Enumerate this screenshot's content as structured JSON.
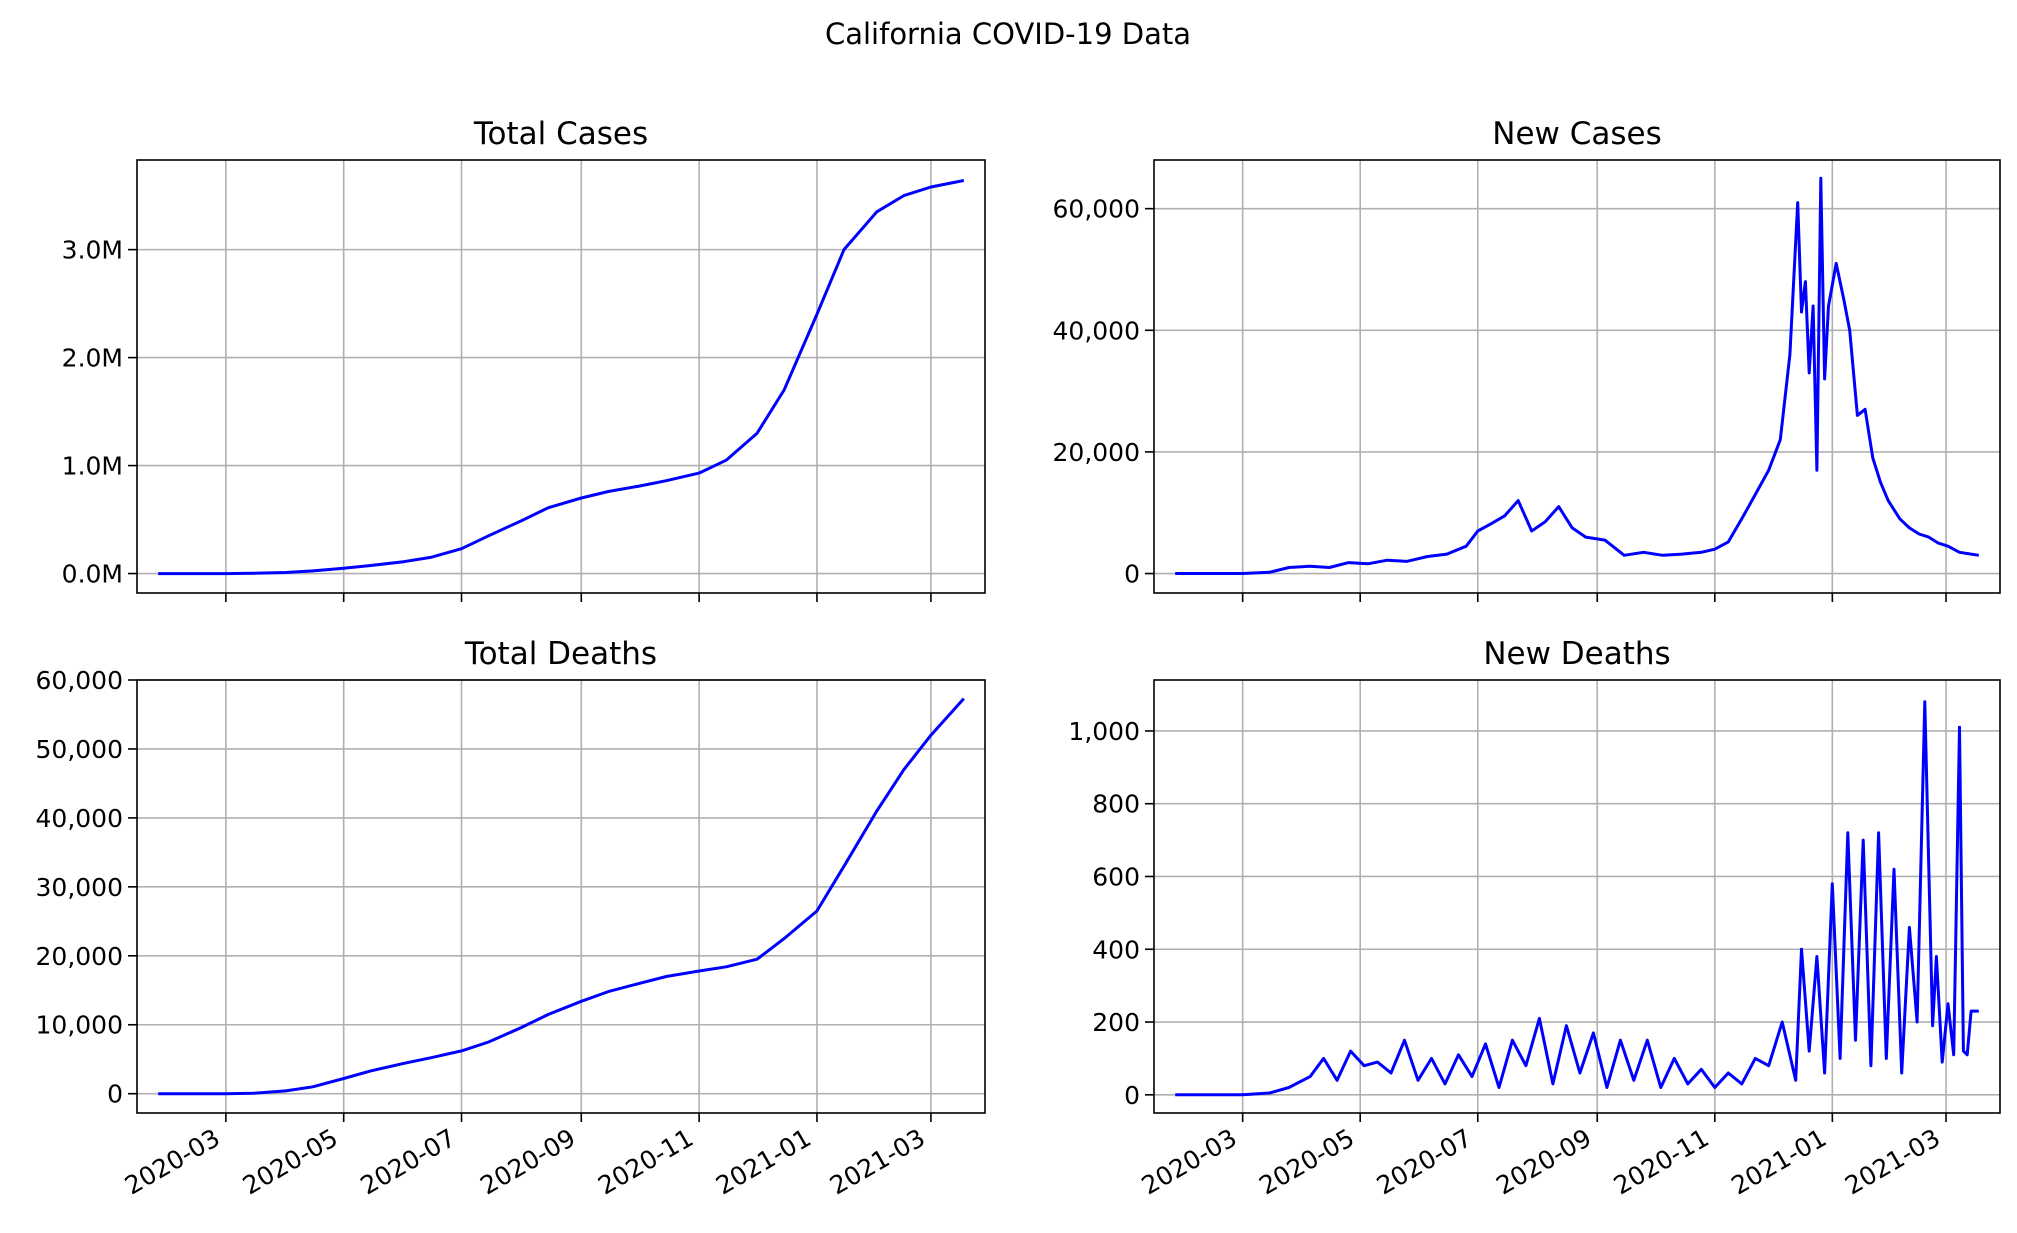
{
  "figure_title": "California COVID-19 Data",
  "colors": {
    "line": "#0000ff",
    "grid": "#b0b0b0",
    "frame": "#000000"
  },
  "chart_data": [
    {
      "type": "line",
      "title": "Total Cases",
      "xlabel": "",
      "ylabel": "",
      "grid": true,
      "ylim": [
        -180000,
        3830000
      ],
      "yticks": [
        0,
        1000000,
        2000000,
        3000000
      ],
      "ytick_labels": [
        "0.0M",
        "1.0M",
        "2.0M",
        "3.0M"
      ],
      "xticks": [
        "2020-03-01",
        "2020-05-01",
        "2020-07-01",
        "2020-09-01",
        "2020-11-01",
        "2021-01-01",
        "2021-03-01"
      ],
      "xtick_labels": [],
      "x": [
        "2020-01-26",
        "2020-03-01",
        "2020-03-15",
        "2020-04-01",
        "2020-04-15",
        "2020-05-01",
        "2020-05-15",
        "2020-06-01",
        "2020-06-15",
        "2020-07-01",
        "2020-07-15",
        "2020-08-01",
        "2020-08-15",
        "2020-09-01",
        "2020-09-15",
        "2020-10-01",
        "2020-10-15",
        "2020-11-01",
        "2020-11-15",
        "2020-12-01",
        "2020-12-15",
        "2021-01-01",
        "2021-01-15",
        "2021-02-01",
        "2021-02-15",
        "2021-03-01",
        "2021-03-18"
      ],
      "y": [
        0,
        0,
        2000,
        10000,
        25000,
        50000,
        75000,
        110000,
        150000,
        230000,
        350000,
        490000,
        610000,
        700000,
        760000,
        810000,
        860000,
        930000,
        1050000,
        1300000,
        1700000,
        2400000,
        3000000,
        3350000,
        3500000,
        3580000,
        3640000
      ]
    },
    {
      "type": "line",
      "title": "New Cases",
      "xlabel": "",
      "ylabel": "",
      "grid": true,
      "ylim": [
        -3200,
        68000
      ],
      "yticks": [
        0,
        20000,
        40000,
        60000
      ],
      "ytick_labels": [
        "0",
        "20,000",
        "40,000",
        "60,000"
      ],
      "xticks": [
        "2020-03-01",
        "2020-05-01",
        "2020-07-01",
        "2020-09-01",
        "2020-11-01",
        "2021-01-01",
        "2021-03-01"
      ],
      "xtick_labels": [],
      "x": [
        "2020-01-26",
        "2020-03-01",
        "2020-03-15",
        "2020-03-25",
        "2020-04-05",
        "2020-04-15",
        "2020-04-25",
        "2020-05-05",
        "2020-05-15",
        "2020-05-25",
        "2020-06-05",
        "2020-06-15",
        "2020-06-25",
        "2020-07-01",
        "2020-07-08",
        "2020-07-15",
        "2020-07-22",
        "2020-07-29",
        "2020-08-05",
        "2020-08-12",
        "2020-08-19",
        "2020-08-26",
        "2020-09-05",
        "2020-09-15",
        "2020-09-25",
        "2020-10-05",
        "2020-10-15",
        "2020-10-25",
        "2020-11-01",
        "2020-11-08",
        "2020-11-15",
        "2020-11-22",
        "2020-11-29",
        "2020-12-05",
        "2020-12-10",
        "2020-12-14",
        "2020-12-16",
        "2020-12-18",
        "2020-12-20",
        "2020-12-22",
        "2020-12-24",
        "2020-12-26",
        "2020-12-28",
        "2020-12-30",
        "2021-01-03",
        "2021-01-07",
        "2021-01-10",
        "2021-01-14",
        "2021-01-18",
        "2021-01-22",
        "2021-01-26",
        "2021-01-30",
        "2021-02-05",
        "2021-02-10",
        "2021-02-15",
        "2021-02-20",
        "2021-02-25",
        "2021-03-02",
        "2021-03-08",
        "2021-03-14",
        "2021-03-18"
      ],
      "y": [
        0,
        0,
        200,
        1000,
        1200,
        1000,
        1800,
        1600,
        2200,
        2000,
        2800,
        3200,
        4500,
        7000,
        8200,
        9500,
        12000,
        7000,
        8500,
        11000,
        7500,
        6000,
        5500,
        3000,
        3500,
        3000,
        3200,
        3500,
        4000,
        5200,
        9000,
        13000,
        17000,
        22000,
        36000,
        61000,
        43000,
        48000,
        33000,
        44000,
        17000,
        65000,
        32000,
        44000,
        51000,
        45000,
        40000,
        26000,
        27000,
        19000,
        15000,
        12000,
        9000,
        7500,
        6500,
        6000,
        5000,
        4500,
        3500,
        3200,
        3000
      ]
    },
    {
      "type": "line",
      "title": "Total Deaths",
      "xlabel": "",
      "ylabel": "",
      "grid": true,
      "ylim": [
        -2800,
        60000
      ],
      "yticks": [
        0,
        10000,
        20000,
        30000,
        40000,
        50000,
        60000
      ],
      "ytick_labels": [
        "0",
        "10,000",
        "20,000",
        "30,000",
        "40,000",
        "50,000",
        "60,000"
      ],
      "xticks": [
        "2020-03-01",
        "2020-05-01",
        "2020-07-01",
        "2020-09-01",
        "2020-11-01",
        "2021-01-01",
        "2021-03-01"
      ],
      "xtick_labels": [
        "2020-03",
        "2020-05",
        "2020-07",
        "2020-09",
        "2020-11",
        "2021-01",
        "2021-03"
      ],
      "x": [
        "2020-01-26",
        "2020-03-01",
        "2020-03-15",
        "2020-04-01",
        "2020-04-15",
        "2020-05-01",
        "2020-05-15",
        "2020-06-01",
        "2020-06-15",
        "2020-07-01",
        "2020-07-15",
        "2020-08-01",
        "2020-08-15",
        "2020-09-01",
        "2020-09-15",
        "2020-10-01",
        "2020-10-15",
        "2020-11-01",
        "2020-11-15",
        "2020-12-01",
        "2020-12-15",
        "2021-01-01",
        "2021-01-15",
        "2021-02-01",
        "2021-02-15",
        "2021-03-01",
        "2021-03-18"
      ],
      "y": [
        0,
        0,
        50,
        400,
        1000,
        2200,
        3300,
        4400,
        5200,
        6200,
        7500,
        9600,
        11500,
        13400,
        14800,
        16000,
        17000,
        17800,
        18400,
        19500,
        22500,
        26500,
        33000,
        41000,
        47000,
        52000,
        57300
      ]
    },
    {
      "type": "line",
      "title": "New Deaths",
      "xlabel": "",
      "ylabel": "",
      "grid": true,
      "ylim": [
        -50,
        1140
      ],
      "yticks": [
        0,
        200,
        400,
        600,
        800,
        1000
      ],
      "ytick_labels": [
        "0",
        "200",
        "400",
        "600",
        "800",
        "1,000"
      ],
      "xticks": [
        "2020-03-01",
        "2020-05-01",
        "2020-07-01",
        "2020-09-01",
        "2020-11-01",
        "2021-01-01",
        "2021-03-01"
      ],
      "xtick_labels": [
        "2020-03",
        "2020-05",
        "2020-07",
        "2020-09",
        "2020-11",
        "2021-01",
        "2021-03"
      ],
      "x": [
        "2020-01-26",
        "2020-03-01",
        "2020-03-15",
        "2020-03-25",
        "2020-04-05",
        "2020-04-12",
        "2020-04-19",
        "2020-04-26",
        "2020-05-03",
        "2020-05-10",
        "2020-05-17",
        "2020-05-24",
        "2020-05-31",
        "2020-06-07",
        "2020-06-14",
        "2020-06-21",
        "2020-06-28",
        "2020-07-05",
        "2020-07-12",
        "2020-07-19",
        "2020-07-26",
        "2020-08-02",
        "2020-08-09",
        "2020-08-16",
        "2020-08-23",
        "2020-08-30",
        "2020-09-06",
        "2020-09-13",
        "2020-09-20",
        "2020-09-27",
        "2020-10-04",
        "2020-10-11",
        "2020-10-18",
        "2020-10-25",
        "2020-11-01",
        "2020-11-08",
        "2020-11-15",
        "2020-11-22",
        "2020-11-29",
        "2020-12-06",
        "2020-12-13",
        "2020-12-16",
        "2020-12-20",
        "2020-12-24",
        "2020-12-28",
        "2021-01-01",
        "2021-01-05",
        "2021-01-09",
        "2021-01-13",
        "2021-01-17",
        "2021-01-21",
        "2021-01-25",
        "2021-01-29",
        "2021-02-02",
        "2021-02-06",
        "2021-02-10",
        "2021-02-14",
        "2021-02-18",
        "2021-02-22",
        "2021-02-24",
        "2021-02-27",
        "2021-03-02",
        "2021-03-05",
        "2021-03-08",
        "2021-03-10",
        "2021-03-12",
        "2021-03-14",
        "2021-03-18"
      ],
      "y": [
        0,
        0,
        5,
        20,
        50,
        100,
        40,
        120,
        80,
        90,
        60,
        150,
        40,
        100,
        30,
        110,
        50,
        140,
        20,
        150,
        80,
        210,
        30,
        190,
        60,
        170,
        20,
        150,
        40,
        150,
        20,
        100,
        30,
        70,
        20,
        60,
        30,
        100,
        80,
        200,
        40,
        400,
        120,
        380,
        60,
        580,
        100,
        720,
        150,
        700,
        80,
        720,
        100,
        620,
        60,
        460,
        200,
        1080,
        190,
        380,
        90,
        250,
        110,
        1010,
        120,
        110,
        230,
        230
      ]
    }
  ]
}
